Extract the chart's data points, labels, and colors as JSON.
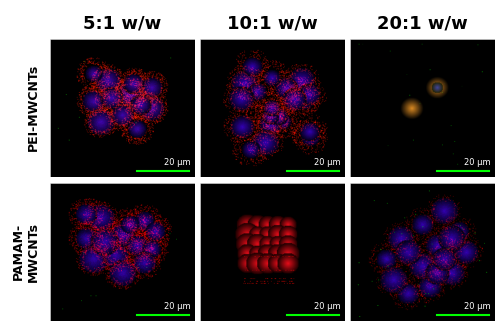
{
  "col_labels": [
    "5:1 w/w",
    "10:1 w/w",
    "20:1 w/w"
  ],
  "row_labels": [
    "PEI-MWCNTs",
    "PAMAM-\nMWCNTs"
  ],
  "col_label_fontsize": 13,
  "row_label_fontsize": 9,
  "scale_bar_text": "20 μm",
  "scale_bar_fontsize": 6,
  "background_color": "#000000",
  "label_color": "#000000",
  "fig_bg": "#ffffff",
  "border_color": "#ffffff",
  "seed": 42
}
